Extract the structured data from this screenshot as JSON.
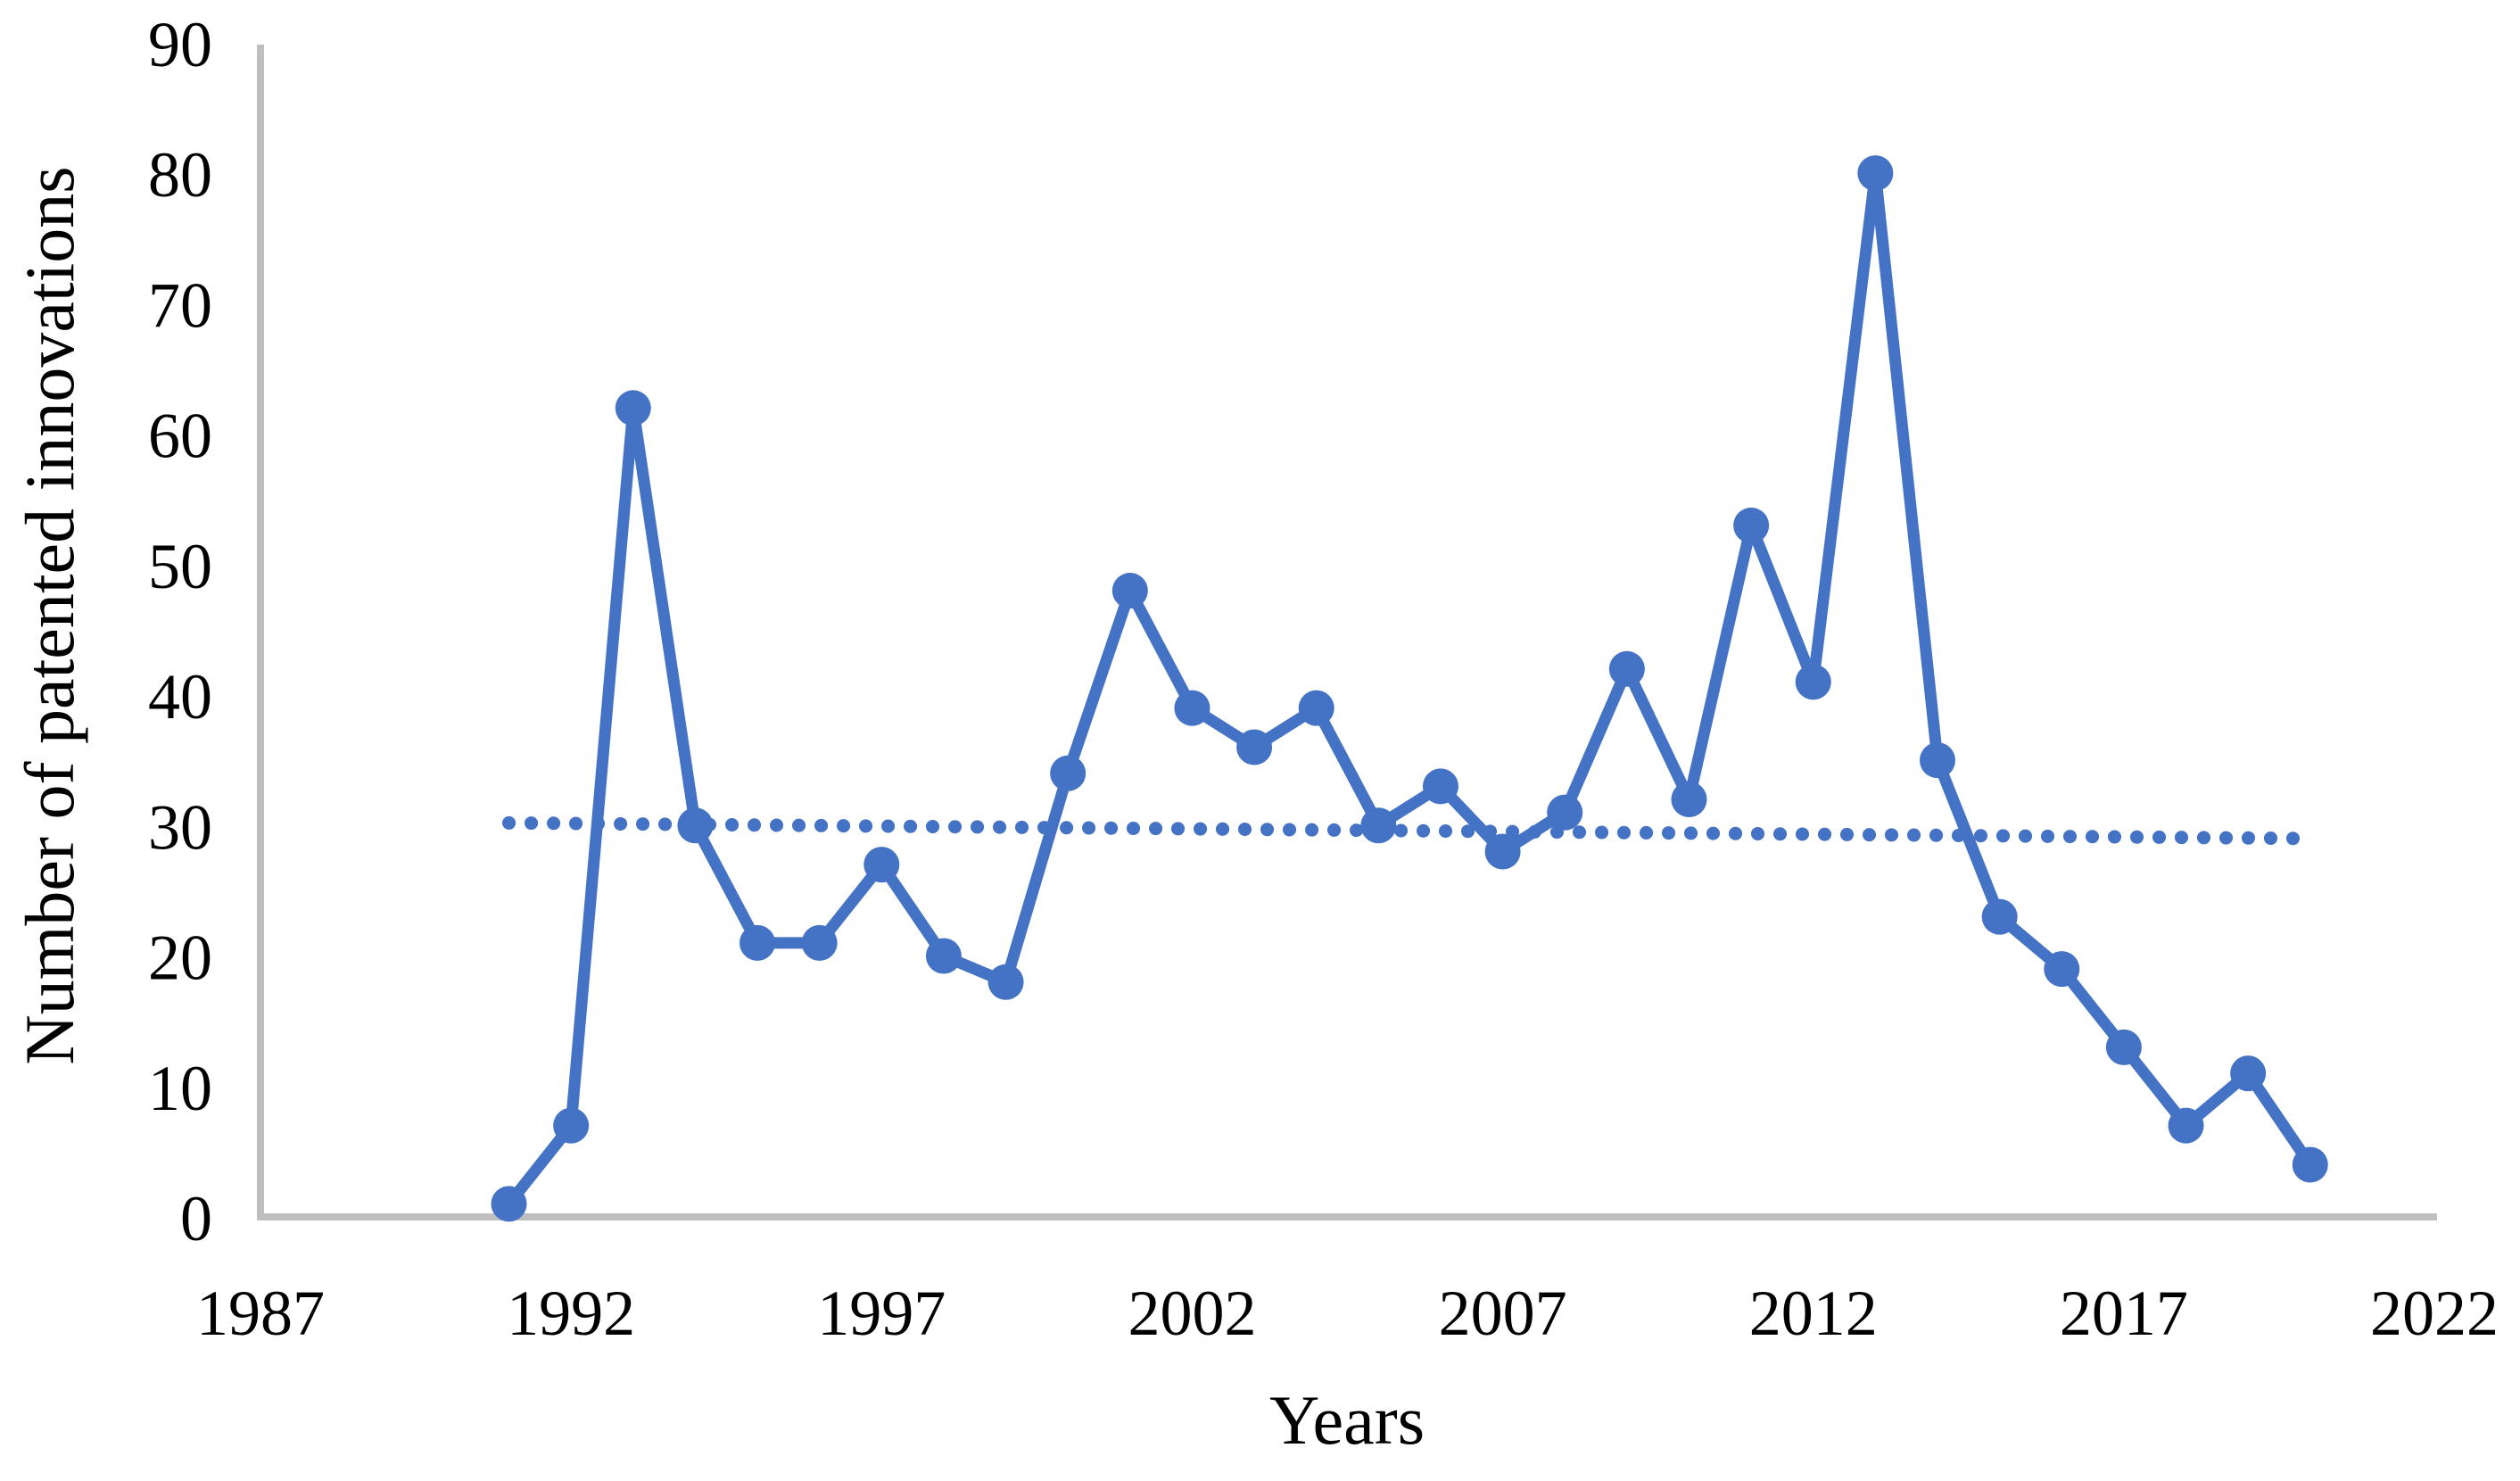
{
  "figure": {
    "background": "#ffffff"
  },
  "chart_data": {
    "type": "line",
    "title": "",
    "xlabel": "Years",
    "ylabel": "Number of patented innovations",
    "x": [
      1991,
      1992,
      1993,
      1994,
      1995,
      1996,
      1997,
      1998,
      1999,
      2000,
      2001,
      2002,
      2003,
      2004,
      2005,
      2006,
      2007,
      2008,
      2009,
      2010,
      2011,
      2012,
      2013,
      2014,
      2015,
      2016,
      2017,
      2018,
      2019,
      2020
    ],
    "values": [
      1,
      7,
      62,
      30,
      21,
      21,
      27,
      20,
      18,
      34,
      48,
      39,
      36,
      39,
      30,
      33,
      28,
      31,
      42,
      32,
      53,
      41,
      80,
      35,
      23,
      19,
      13,
      7,
      11,
      4
    ],
    "series": [
      {
        "name": "Number of patented innovations",
        "color": "#4472C4",
        "marker": "circle",
        "line_style": "solid"
      }
    ],
    "trendline": {
      "style": "dotted",
      "color": "#4472C4",
      "start": {
        "x": 1991,
        "y": 30.2
      },
      "end": {
        "x": 2020,
        "y": 29.0
      }
    },
    "x_ticks": [
      "1987",
      "1992",
      "1997",
      "2002",
      "2007",
      "2012",
      "2017",
      "2022"
    ],
    "y_ticks": [
      "0",
      "10",
      "20",
      "30",
      "40",
      "50",
      "60",
      "70",
      "80",
      "90"
    ],
    "xlim": [
      1987,
      2022
    ],
    "ylim": [
      0,
      90
    ],
    "grid": false,
    "legend": false,
    "axis_color": "#BFBFBF",
    "text_color": "#000000"
  }
}
